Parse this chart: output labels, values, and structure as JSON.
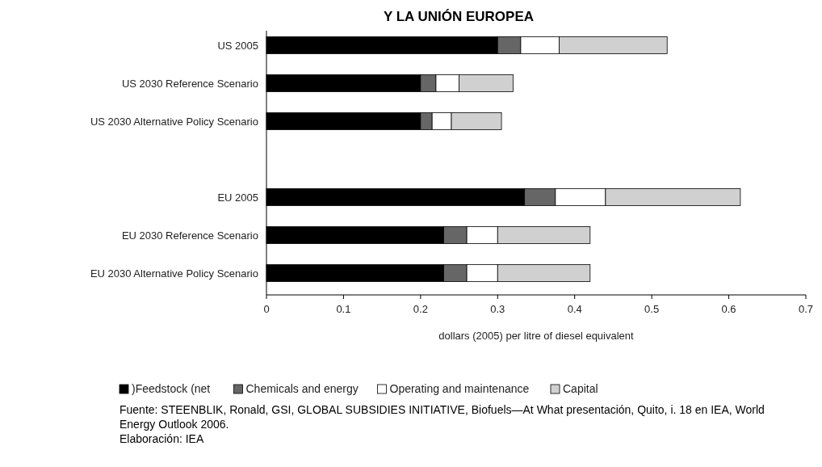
{
  "chart_data": {
    "type": "bar",
    "orientation": "horizontal",
    "stacked": true,
    "title": "Y LA UNIÓN EUROPEA",
    "categories": [
      "US 2005",
      "US 2030 Reference Scenario",
      "US 2030 Alternative Policy Scenario",
      null,
      "EU 2005",
      "EU 2030 Reference Scenario",
      "EU 2030 Alternative Policy Scenario"
    ],
    "series": [
      {
        "name": ")Feedstock (net",
        "color": "#000000",
        "values": [
          0.3,
          0.2,
          0.2,
          null,
          0.335,
          0.23,
          0.23
        ]
      },
      {
        "name": "Chemicals and energy",
        "color": "#666666",
        "values": [
          0.03,
          0.02,
          0.015,
          null,
          0.04,
          0.03,
          0.03
        ]
      },
      {
        "name": "Operating and maintenance",
        "color": "#ffffff",
        "values": [
          0.05,
          0.03,
          0.025,
          null,
          0.065,
          0.04,
          0.04
        ]
      },
      {
        "name": "Capital",
        "color": "#d0d0d0",
        "values": [
          0.14,
          0.07,
          0.065,
          null,
          0.175,
          0.12,
          0.12
        ]
      }
    ],
    "xlim": [
      0,
      0.7
    ],
    "xticks": [
      0,
      0.1,
      0.2,
      0.3,
      0.4,
      0.5,
      0.6,
      0.7
    ],
    "xlabel": "dollars (2005) per litre of diesel equivalent",
    "legend": "bottom",
    "annotations": [
      "Fuente: STEENBLIK, Ronald, GSI, GLOBAL SUBSIDIES INITIATIVE, Biofuels—At What presentación, Quito, i. 18 en IEA, World Energy Outlook 2006.",
      "Elaboración: IEA"
    ]
  }
}
